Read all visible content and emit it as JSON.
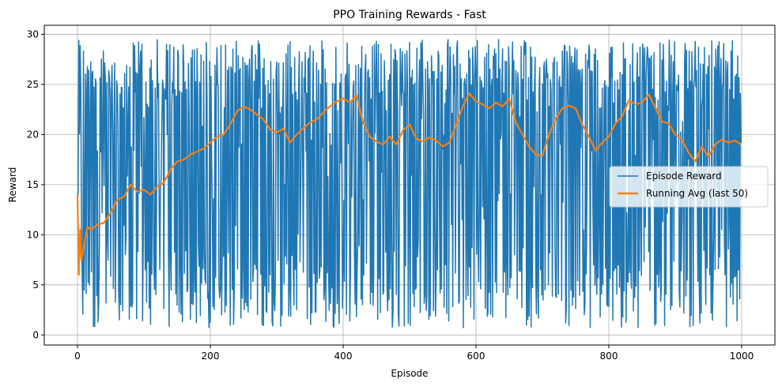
{
  "chart_data": {
    "type": "line",
    "title": "PPO Training Rewards - Fast",
    "xlabel": "Episode",
    "ylabel": "Reward",
    "xlim": [
      -50,
      1050
    ],
    "ylim": [
      -1.0,
      30.9
    ],
    "xticks": [
      0,
      200,
      400,
      600,
      800,
      1000
    ],
    "yticks": [
      0,
      5,
      10,
      15,
      20,
      25,
      30
    ],
    "grid": true,
    "legend_position": "center-right",
    "series": [
      {
        "name": "Episode Reward",
        "color": "#1f77b4",
        "note": "high-variance per-episode reward oscillating between roughly 1 and 29.5 for episodes 0-999",
        "envelope_y_min": 0.7,
        "envelope_y_max": 29.5
      },
      {
        "name": "Running Avg (last 50)",
        "color": "#ff7f0e",
        "x": [
          0,
          2,
          4,
          6,
          10,
          15,
          20,
          30,
          40,
          50,
          60,
          70,
          80,
          90,
          100,
          110,
          120,
          130,
          140,
          150,
          160,
          170,
          180,
          190,
          200,
          210,
          220,
          230,
          240,
          250,
          260,
          270,
          280,
          290,
          300,
          310,
          320,
          330,
          340,
          350,
          360,
          370,
          380,
          390,
          400,
          410,
          420,
          430,
          440,
          450,
          460,
          470,
          480,
          490,
          500,
          510,
          520,
          530,
          540,
          550,
          560,
          570,
          580,
          590,
          600,
          610,
          620,
          630,
          640,
          650,
          660,
          670,
          680,
          690,
          700,
          710,
          720,
          730,
          740,
          750,
          760,
          770,
          780,
          790,
          800,
          810,
          820,
          830,
          840,
          850,
          860,
          870,
          880,
          890,
          900,
          910,
          920,
          930,
          940,
          950,
          960,
          970,
          980,
          990,
          999
        ],
        "y": [
          14.0,
          6.0,
          10.5,
          7.5,
          9.0,
          10.8,
          10.5,
          11.0,
          11.2,
          12.2,
          13.5,
          13.8,
          15.0,
          14.3,
          14.5,
          14.0,
          14.8,
          15.2,
          16.5,
          17.3,
          17.5,
          18.0,
          18.3,
          18.6,
          19.2,
          19.8,
          20.0,
          21.0,
          22.3,
          22.8,
          22.5,
          22.0,
          21.5,
          20.5,
          20.2,
          20.6,
          19.2,
          20.0,
          20.6,
          21.2,
          21.5,
          22.2,
          22.8,
          23.3,
          23.6,
          23.2,
          23.9,
          21.2,
          19.8,
          19.3,
          19.0,
          19.8,
          19.0,
          20.4,
          21.0,
          19.6,
          19.3,
          19.7,
          19.4,
          18.8,
          19.2,
          21.0,
          22.8,
          24.1,
          23.3,
          23.0,
          22.6,
          23.2,
          22.8,
          23.6,
          21.2,
          20.0,
          18.8,
          18.0,
          17.9,
          20.0,
          21.6,
          22.6,
          22.9,
          22.6,
          21.0,
          19.8,
          18.4,
          19.2,
          19.8,
          21.1,
          21.8,
          23.4,
          23.0,
          23.2,
          24.0,
          22.7,
          21.3,
          21.1,
          20.0,
          19.5,
          18.2,
          17.3,
          18.8,
          17.8,
          19.0,
          19.5,
          19.2,
          19.4,
          19.0
        ]
      }
    ]
  }
}
